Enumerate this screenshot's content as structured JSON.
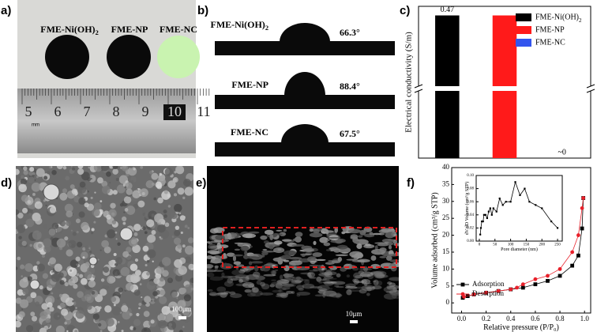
{
  "panel_labels": [
    "a)",
    "b)",
    "c)",
    "d)",
    "e)",
    "f)"
  ],
  "photo": {
    "samples": [
      "FME-Ni(OH)2",
      "FME-NP",
      "FME-NC"
    ],
    "ruler": [
      "5",
      "6",
      "7",
      "8",
      "9",
      "10",
      "11"
    ],
    "unit": "mm"
  },
  "contact_angle": [
    {
      "sample": "FME-Ni(OH)2",
      "angle": "66.3°"
    },
    {
      "sample": "FME-NP",
      "angle": "88.4°"
    },
    {
      "sample": "FME-NC",
      "angle": "67.5°"
    }
  ],
  "sem": {
    "surface_scale": "100μm",
    "cross_section_scale": "10μm"
  },
  "chart_data": [
    {
      "type": "bar",
      "y_label": "Electrical conductivity (S/m)",
      "categories": [
        "FME-Ni(OH)2",
        "FME-NP",
        "FME-NC"
      ],
      "values": [
        0.47,
        0.47,
        0
      ],
      "value_labels": [
        "0.47",
        null,
        "~0"
      ],
      "colors": [
        "#000000",
        "#ff1a1a",
        "#3355ee"
      ],
      "ylim": [
        0,
        0.5
      ],
      "legend": "upper right"
    },
    {
      "type": "line",
      "x_label": "Relative pressure (P/P₀)",
      "y_label": "Volume adsorbed (cm³/g STP)",
      "xlim": [
        -0.08,
        1.05
      ],
      "xticks": [
        {
          "value": 0,
          "label": "0.0"
        },
        {
          "value": 0.2,
          "label": "0.2"
        },
        {
          "value": 0.4,
          "label": "0.4"
        },
        {
          "value": 0.6,
          "label": "0.6"
        },
        {
          "value": 0.8,
          "label": "0.8"
        },
        {
          "value": 1,
          "label": "1.0"
        }
      ],
      "ylim": [
        -3,
        40
      ],
      "yticks": [
        0,
        5,
        10,
        15,
        20,
        25,
        30,
        35,
        40
      ],
      "legend": "lower left",
      "series": [
        {
          "name": "Adsorption",
          "color": "#000000",
          "marker": "square",
          "x": [
            0.01,
            0.05,
            0.1,
            0.2,
            0.3,
            0.4,
            0.5,
            0.6,
            0.7,
            0.8,
            0.9,
            0.95,
            0.98,
            0.99
          ],
          "values": [
            1.5,
            2,
            2.5,
            3,
            3.5,
            4,
            4.5,
            5.5,
            6.5,
            8,
            11,
            14,
            22,
            31
          ]
        },
        {
          "name": "Desorption",
          "color": "#e8202a",
          "marker": "circle",
          "x": [
            0.02,
            0.1,
            0.2,
            0.3,
            0.4,
            0.45,
            0.5,
            0.6,
            0.7,
            0.8,
            0.9,
            0.95,
            0.98,
            0.99
          ],
          "values": [
            1.8,
            2.5,
            3,
            3.5,
            4,
            4.5,
            5.5,
            7,
            8,
            10,
            15,
            20,
            28,
            31
          ]
        }
      ]
    },
    {
      "type": "line",
      "x_label": "Pore diameter (nm)",
      "y_label": "dV/dD Volume (cm³/g STP)",
      "xlim": [
        -10,
        265
      ],
      "xticks": [
        0,
        50,
        100,
        150,
        200,
        250
      ],
      "ylim": [
        0,
        0.1
      ],
      "yticks": [
        {
          "value": 0,
          "label": "0.00"
        },
        {
          "value": 0.02,
          "label": "0.02"
        },
        {
          "value": 0.04,
          "label": "0.04"
        },
        {
          "value": 0.06,
          "label": "0.06"
        },
        {
          "value": 0.08,
          "label": "0.08"
        },
        {
          "value": 0.1,
          "label": "0.10"
        }
      ],
      "series": [
        {
          "color": "#000000",
          "marker": "square",
          "x": [
            3,
            5,
            8,
            12,
            15,
            20,
            25,
            30,
            35,
            40,
            45,
            55,
            65,
            75,
            85,
            100,
            115,
            130,
            145,
            160,
            180,
            200,
            230,
            250
          ],
          "values": [
            0.01,
            0.02,
            0.03,
            0.03,
            0.04,
            0.04,
            0.035,
            0.045,
            0.05,
            0.04,
            0.05,
            0.045,
            0.065,
            0.055,
            0.06,
            0.06,
            0.09,
            0.07,
            0.08,
            0.06,
            0.055,
            0.05,
            0.03,
            0.02
          ]
        }
      ]
    }
  ]
}
